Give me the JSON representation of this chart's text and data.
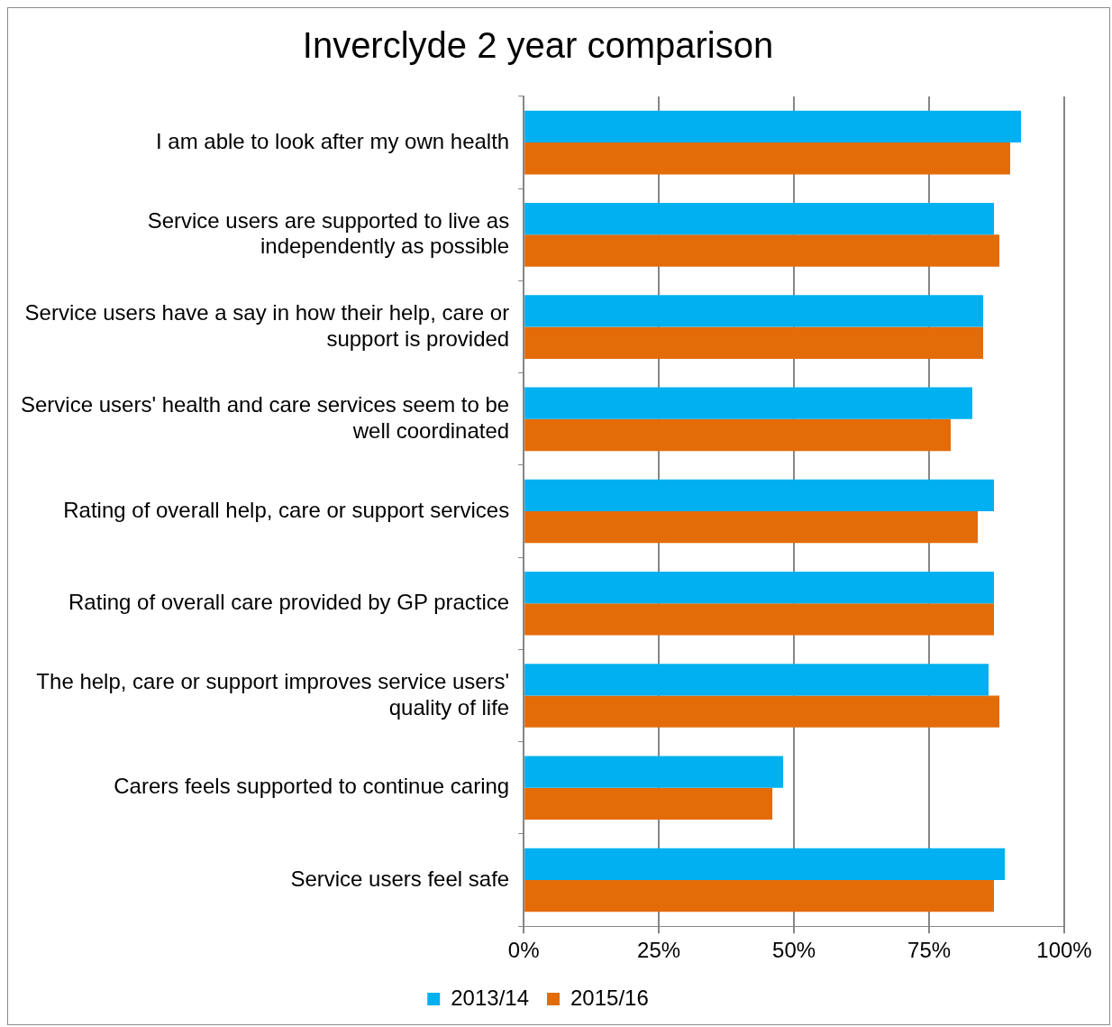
{
  "chart_data": {
    "type": "bar",
    "orientation": "horizontal",
    "title": "Inverclyde 2 year comparison",
    "categories": [
      "I am able to look after my own health",
      "Service users are supported to live as independently as possible",
      "Service users have a say in how their help, care or support is provided",
      "Service users' health and care services seem to be well coordinated",
      "Rating of overall help, care or support services",
      "Rating of overall care provided by GP practice",
      "The help, care or support improves service users' quality of life",
      "Carers feels supported to continue caring",
      "Service users feel safe"
    ],
    "series": [
      {
        "name": "2013/14",
        "color": "#00b0f0",
        "values": [
          92,
          87,
          85,
          83,
          87,
          87,
          86,
          48,
          89
        ]
      },
      {
        "name": "2015/16",
        "color": "#e36c09",
        "values": [
          90,
          88,
          85,
          79,
          84,
          87,
          88,
          46,
          87
        ]
      }
    ],
    "xlim": [
      0,
      100
    ],
    "xticks": [
      {
        "value": 0,
        "label": "0%"
      },
      {
        "value": 25,
        "label": "25%"
      },
      {
        "value": 50,
        "label": "50%"
      },
      {
        "value": 75,
        "label": "75%"
      },
      {
        "value": 100,
        "label": "100%"
      }
    ],
    "grid": "x",
    "legend": "bottom"
  }
}
